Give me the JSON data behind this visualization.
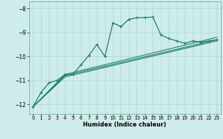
{
  "title": "",
  "xlabel": "Humidex (Indice chaleur)",
  "bg_color": "#ceecea",
  "line_color": "#1a7a6a",
  "grid_color": "#aad4d0",
  "xlim": [
    -0.5,
    23.5
  ],
  "ylim": [
    -12.4,
    -7.7
  ],
  "yticks": [
    -12,
    -11,
    -10,
    -9,
    -8
  ],
  "xticks": [
    0,
    1,
    2,
    3,
    4,
    5,
    6,
    7,
    8,
    9,
    10,
    11,
    12,
    13,
    14,
    15,
    16,
    17,
    18,
    19,
    20,
    21,
    22,
    23
  ],
  "curve1_x": [
    0,
    1,
    2,
    3,
    4,
    5,
    6,
    7,
    8,
    9,
    10,
    11,
    12,
    13,
    14,
    15,
    16,
    17,
    18,
    19,
    20,
    21,
    22,
    23
  ],
  "curve1_y": [
    -12.1,
    -11.5,
    -11.1,
    -11.0,
    -10.75,
    -10.75,
    -10.35,
    -9.95,
    -9.5,
    -10.0,
    -8.6,
    -8.75,
    -8.45,
    -8.38,
    -8.38,
    -8.35,
    -9.1,
    -9.25,
    -9.35,
    -9.45,
    -9.35,
    -9.4,
    -9.35,
    -9.3
  ],
  "curve2_x": [
    0,
    4,
    23
  ],
  "curve2_y": [
    -12.1,
    -10.75,
    -9.2
  ],
  "curve3_x": [
    0,
    4,
    23
  ],
  "curve3_y": [
    -12.1,
    -10.8,
    -9.3
  ],
  "curve4_x": [
    0,
    4,
    23
  ],
  "curve4_y": [
    -12.1,
    -10.85,
    -9.35
  ],
  "marker": "+"
}
